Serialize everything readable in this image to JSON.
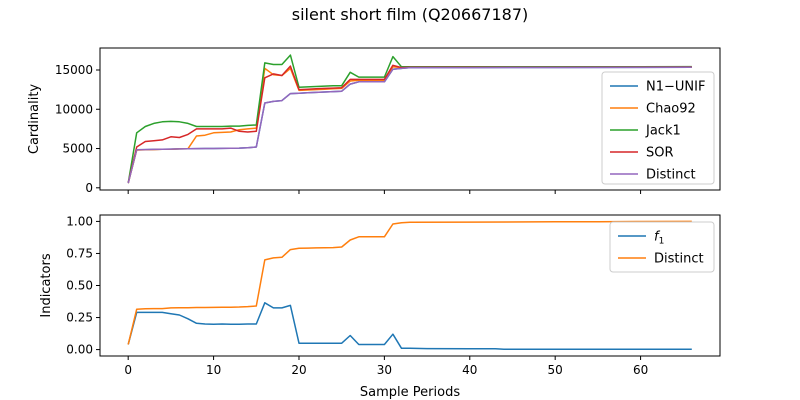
{
  "figure_title": "silent short film (Q20667187)",
  "xlabel": "Sample Periods",
  "chart_data": [
    {
      "type": "line",
      "ylabel": "Cardinality",
      "xlim": [
        -3.3,
        69.3
      ],
      "ylim": [
        -280,
        17800
      ],
      "xticks": [
        0,
        10,
        20,
        30,
        40,
        50,
        60
      ],
      "xtick_labels_visible": false,
      "yticks": [
        0,
        5000,
        10000,
        15000
      ],
      "yticklabels": [
        "0",
        "5000",
        "10000",
        "15000"
      ],
      "legend_position": "right",
      "series": [
        {
          "name": "N1−UNIF",
          "color": "#1f77b4",
          "points": [
            [
              0,
              600
            ],
            [
              1,
              4850
            ],
            [
              2,
              4870
            ],
            [
              3,
              4890
            ],
            [
              4,
              4910
            ],
            [
              5,
              4930
            ],
            [
              6,
              4950
            ],
            [
              7,
              4970
            ],
            [
              8,
              4990
            ],
            [
              9,
              5000
            ],
            [
              10,
              5010
            ],
            [
              11,
              5020
            ],
            [
              12,
              5030
            ],
            [
              13,
              5050
            ],
            [
              14,
              5100
            ],
            [
              15,
              5200
            ],
            [
              16,
              10800
            ],
            [
              17,
              11000
            ],
            [
              18,
              11100
            ],
            [
              19,
              12000
            ],
            [
              20,
              12050
            ],
            [
              21,
              12100
            ],
            [
              22,
              12150
            ],
            [
              23,
              12200
            ],
            [
              24,
              12250
            ],
            [
              25,
              12300
            ],
            [
              26,
              13200
            ],
            [
              27,
              13500
            ],
            [
              28,
              13500
            ],
            [
              29,
              13500
            ],
            [
              30,
              13500
            ],
            [
              31,
              15100
            ],
            [
              32,
              15200
            ],
            [
              33,
              15300
            ],
            [
              40,
              15300
            ],
            [
              50,
              15320
            ],
            [
              60,
              15330
            ],
            [
              66,
              15350
            ]
          ]
        },
        {
          "name": "Chao92",
          "color": "#ff7f0e",
          "points": [
            [
              0,
              600
            ],
            [
              1,
              4800
            ],
            [
              2,
              4850
            ],
            [
              3,
              4870
            ],
            [
              4,
              4900
            ],
            [
              5,
              4920
            ],
            [
              6,
              4950
            ],
            [
              7,
              4980
            ],
            [
              8,
              6600
            ],
            [
              9,
              6700
            ],
            [
              10,
              7000
            ],
            [
              11,
              7050
            ],
            [
              12,
              7100
            ],
            [
              13,
              7400
            ],
            [
              14,
              7500
            ],
            [
              15,
              7600
            ],
            [
              16,
              15200
            ],
            [
              17,
              14400
            ],
            [
              18,
              14300
            ],
            [
              19,
              15200
            ],
            [
              20,
              12400
            ],
            [
              21,
              12450
            ],
            [
              22,
              12500
            ],
            [
              23,
              12550
            ],
            [
              24,
              12600
            ],
            [
              25,
              12650
            ],
            [
              26,
              13600
            ],
            [
              27,
              13700
            ],
            [
              28,
              13700
            ],
            [
              29,
              13700
            ],
            [
              30,
              13700
            ],
            [
              31,
              15400
            ],
            [
              32,
              15300
            ],
            [
              33,
              15350
            ],
            [
              40,
              15350
            ],
            [
              50,
              15360
            ],
            [
              60,
              15370
            ],
            [
              66,
              15380
            ]
          ]
        },
        {
          "name": "Jack1",
          "color": "#2ca02c",
          "points": [
            [
              0,
              600
            ],
            [
              1,
              7000
            ],
            [
              2,
              7800
            ],
            [
              3,
              8200
            ],
            [
              4,
              8400
            ],
            [
              5,
              8450
            ],
            [
              6,
              8400
            ],
            [
              7,
              8200
            ],
            [
              8,
              7800
            ],
            [
              9,
              7800
            ],
            [
              10,
              7800
            ],
            [
              11,
              7800
            ],
            [
              12,
              7850
            ],
            [
              13,
              7850
            ],
            [
              14,
              7950
            ],
            [
              15,
              8000
            ],
            [
              16,
              15900
            ],
            [
              17,
              15700
            ],
            [
              18,
              15700
            ],
            [
              19,
              16900
            ],
            [
              20,
              12800
            ],
            [
              21,
              12850
            ],
            [
              22,
              12900
            ],
            [
              23,
              12950
            ],
            [
              24,
              13000
            ],
            [
              25,
              13000
            ],
            [
              26,
              14700
            ],
            [
              27,
              14100
            ],
            [
              28,
              14100
            ],
            [
              29,
              14100
            ],
            [
              30,
              14100
            ],
            [
              31,
              16700
            ],
            [
              32,
              15400
            ],
            [
              33,
              15400
            ],
            [
              40,
              15400
            ],
            [
              50,
              15410
            ],
            [
              60,
              15420
            ],
            [
              66,
              15430
            ]
          ]
        },
        {
          "name": "SOR",
          "color": "#d62728",
          "points": [
            [
              0,
              600
            ],
            [
              1,
              5200
            ],
            [
              2,
              5900
            ],
            [
              3,
              6000
            ],
            [
              4,
              6100
            ],
            [
              5,
              6500
            ],
            [
              6,
              6400
            ],
            [
              7,
              6800
            ],
            [
              8,
              7500
            ],
            [
              9,
              7500
            ],
            [
              10,
              7500
            ],
            [
              11,
              7500
            ],
            [
              12,
              7600
            ],
            [
              13,
              7200
            ],
            [
              14,
              7100
            ],
            [
              15,
              7200
            ],
            [
              16,
              14000
            ],
            [
              17,
              14500
            ],
            [
              18,
              14300
            ],
            [
              19,
              15500
            ],
            [
              20,
              12500
            ],
            [
              21,
              12550
            ],
            [
              22,
              12600
            ],
            [
              23,
              12650
            ],
            [
              24,
              12700
            ],
            [
              25,
              12750
            ],
            [
              26,
              13800
            ],
            [
              27,
              13800
            ],
            [
              28,
              13800
            ],
            [
              29,
              13800
            ],
            [
              30,
              13800
            ],
            [
              31,
              15600
            ],
            [
              32,
              15300
            ],
            [
              33,
              15350
            ],
            [
              40,
              15350
            ],
            [
              50,
              15360
            ],
            [
              60,
              15370
            ],
            [
              66,
              15380
            ]
          ]
        },
        {
          "name": "Distinct",
          "color": "#9467bd",
          "points": [
            [
              0,
              600
            ],
            [
              1,
              4850
            ],
            [
              2,
              4870
            ],
            [
              3,
              4890
            ],
            [
              4,
              4910
            ],
            [
              5,
              4930
            ],
            [
              6,
              4950
            ],
            [
              7,
              4970
            ],
            [
              8,
              4990
            ],
            [
              9,
              5000
            ],
            [
              10,
              5010
            ],
            [
              11,
              5020
            ],
            [
              12,
              5030
            ],
            [
              13,
              5050
            ],
            [
              14,
              5100
            ],
            [
              15,
              5200
            ],
            [
              16,
              10800
            ],
            [
              17,
              11000
            ],
            [
              18,
              11100
            ],
            [
              19,
              12000
            ],
            [
              20,
              12050
            ],
            [
              21,
              12100
            ],
            [
              22,
              12150
            ],
            [
              23,
              12200
            ],
            [
              24,
              12250
            ],
            [
              25,
              12300
            ],
            [
              26,
              13200
            ],
            [
              27,
              13500
            ],
            [
              28,
              13500
            ],
            [
              29,
              13500
            ],
            [
              30,
              13500
            ],
            [
              31,
              15100
            ],
            [
              32,
              15200
            ],
            [
              33,
              15300
            ],
            [
              40,
              15300
            ],
            [
              50,
              15320
            ],
            [
              60,
              15330
            ],
            [
              66,
              15350
            ]
          ]
        }
      ]
    },
    {
      "type": "line",
      "ylabel": "Indicators",
      "xlim": [
        -3.3,
        69.3
      ],
      "ylim": [
        -0.05,
        1.05
      ],
      "xticks": [
        0,
        10,
        20,
        30,
        40,
        50,
        60
      ],
      "xticklabels": [
        "0",
        "10",
        "20",
        "30",
        "40",
        "50",
        "60"
      ],
      "yticks": [
        0,
        0.25,
        0.5,
        0.75,
        1.0
      ],
      "yticklabels": [
        "0.00",
        "0.25",
        "0.50",
        "0.75",
        "1.00"
      ],
      "legend_position": "upper right",
      "series": [
        {
          "name": "f1",
          "color": "#1f77b4",
          "points": [
            [
              0,
              0.04
            ],
            [
              1,
              0.29
            ],
            [
              2,
              0.29
            ],
            [
              3,
              0.29
            ],
            [
              4,
              0.29
            ],
            [
              5,
              0.28
            ],
            [
              6,
              0.27
            ],
            [
              7,
              0.24
            ],
            [
              8,
              0.205
            ],
            [
              9,
              0.2
            ],
            [
              10,
              0.197
            ],
            [
              11,
              0.2
            ],
            [
              12,
              0.197
            ],
            [
              13,
              0.197
            ],
            [
              14,
              0.2
            ],
            [
              15,
              0.2
            ],
            [
              16,
              0.365
            ],
            [
              17,
              0.325
            ],
            [
              18,
              0.325
            ],
            [
              19,
              0.345
            ],
            [
              20,
              0.05
            ],
            [
              21,
              0.05
            ],
            [
              22,
              0.05
            ],
            [
              23,
              0.05
            ],
            [
              24,
              0.05
            ],
            [
              25,
              0.05
            ],
            [
              26,
              0.11
            ],
            [
              27,
              0.04
            ],
            [
              28,
              0.04
            ],
            [
              29,
              0.04
            ],
            [
              30,
              0.04
            ],
            [
              31,
              0.12
            ],
            [
              32,
              0.01
            ],
            [
              33,
              0.01
            ],
            [
              35,
              0.008
            ],
            [
              40,
              0.007
            ],
            [
              43,
              0.007
            ],
            [
              44,
              0.003
            ],
            [
              50,
              0.003
            ],
            [
              60,
              0.003
            ],
            [
              66,
              0.002
            ]
          ]
        },
        {
          "name": "Distinct",
          "color": "#ff7f0e",
          "points": [
            [
              0,
              0.04
            ],
            [
              1,
              0.315
            ],
            [
              2,
              0.318
            ],
            [
              3,
              0.32
            ],
            [
              4,
              0.32
            ],
            [
              5,
              0.325
            ],
            [
              6,
              0.326
            ],
            [
              7,
              0.327
            ],
            [
              8,
              0.328
            ],
            [
              9,
              0.328
            ],
            [
              10,
              0.329
            ],
            [
              11,
              0.33
            ],
            [
              12,
              0.331
            ],
            [
              13,
              0.332
            ],
            [
              14,
              0.335
            ],
            [
              15,
              0.34
            ],
            [
              16,
              0.7
            ],
            [
              17,
              0.715
            ],
            [
              18,
              0.72
            ],
            [
              19,
              0.78
            ],
            [
              20,
              0.79
            ],
            [
              21,
              0.792
            ],
            [
              22,
              0.793
            ],
            [
              23,
              0.795
            ],
            [
              24,
              0.796
            ],
            [
              25,
              0.8
            ],
            [
              26,
              0.855
            ],
            [
              27,
              0.88
            ],
            [
              28,
              0.88
            ],
            [
              29,
              0.88
            ],
            [
              30,
              0.88
            ],
            [
              31,
              0.98
            ],
            [
              32,
              0.99
            ],
            [
              33,
              0.993
            ],
            [
              40,
              0.995
            ],
            [
              50,
              0.997
            ],
            [
              55,
              0.998
            ],
            [
              60,
              0.999
            ],
            [
              66,
              1.0
            ]
          ]
        }
      ]
    }
  ]
}
